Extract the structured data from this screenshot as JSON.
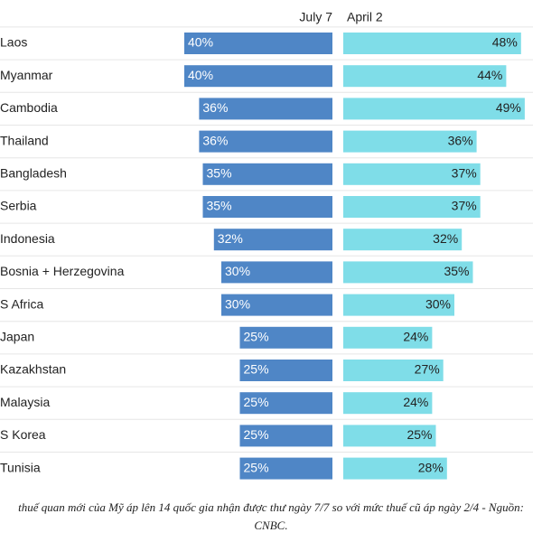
{
  "chart_data": {
    "type": "butterfly-bar",
    "categories": [
      "Laos",
      "Myanmar",
      "Cambodia",
      "Thailand",
      "Bangladesh",
      "Serbia",
      "Indonesia",
      "Bosnia + Herzegovina",
      "S Africa",
      "Japan",
      "Kazakhstan",
      "Malaysia",
      "S Korea",
      "Tunisia"
    ],
    "series": [
      {
        "name": "July 7",
        "color": "#4f86c6",
        "values": [
          40,
          40,
          36,
          36,
          35,
          35,
          32,
          30,
          30,
          25,
          25,
          25,
          25,
          25
        ],
        "value_labels": [
          "40%",
          "40%",
          "36%",
          "36%",
          "35%",
          "35%",
          "32%",
          "30%",
          "30%",
          "25%",
          "25%",
          "25%",
          "25%",
          "25%"
        ]
      },
      {
        "name": "April 2",
        "color": "#7fdde8",
        "values": [
          48,
          44,
          49,
          36,
          37,
          37,
          32,
          35,
          30,
          24,
          27,
          24,
          25,
          28
        ],
        "value_labels": [
          "48%",
          "44%",
          "49%",
          "36%",
          "37%",
          "37%",
          "32%",
          "35%",
          "30%",
          "24%",
          "27%",
          "24%",
          "25%",
          "28%"
        ]
      }
    ],
    "caption": "thuế quan mới của Mỹ áp lên 14 quốc gia nhận được thư ngày 7/7 so với mức thuế cũ áp ngày 2/4 - Nguồn: CNBC."
  }
}
